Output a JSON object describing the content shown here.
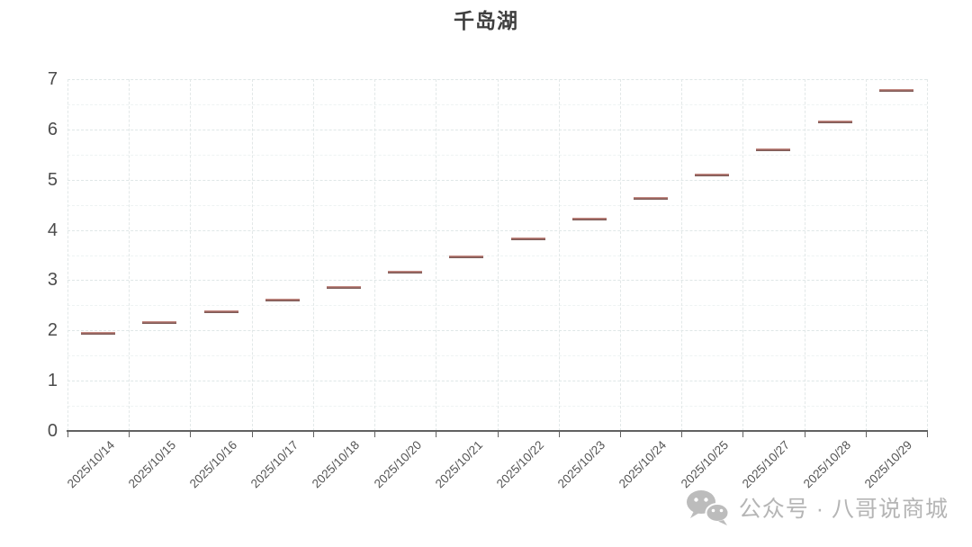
{
  "title": "千岛湖",
  "watermark": {
    "text": "公众号 · 八哥说商城",
    "icon": "wechat-icon",
    "color": "#b5b5b5"
  },
  "colors": {
    "mark": "#9c635e",
    "mark_top_edge": "#d59b94",
    "axis": "#616161",
    "grid_major": "#dfe7e7",
    "grid_minor": "#eef3f3",
    "title_text": "#3f3f3f",
    "tick_label": "#4c4c4c",
    "background": "#ffffff"
  },
  "chart_data": {
    "type": "candlestick",
    "title": "千岛湖",
    "note": "flat horizontal dash marks (open ≈ close), one per trading day",
    "categories": [
      "2025/10/14",
      "2025/10/15",
      "2025/10/16",
      "2025/10/17",
      "2025/10/18",
      "2025/10/20",
      "2025/10/21",
      "2025/10/22",
      "2025/10/23",
      "2025/10/24",
      "2025/10/25",
      "2025/10/27",
      "2025/10/28",
      "2025/10/29"
    ],
    "values": [
      1.95,
      2.15,
      2.37,
      2.61,
      2.86,
      3.16,
      3.47,
      3.82,
      4.21,
      4.62,
      5.09,
      5.6,
      6.15,
      6.77
    ],
    "xlabel": "",
    "ylabel": "",
    "ylim": [
      0,
      7
    ],
    "y_ticks": [
      0,
      1,
      2,
      3,
      4,
      5,
      6,
      7
    ],
    "x_label_rotation_deg": -45,
    "grid": {
      "horizontal_major": 1.0,
      "horizontal_minor": 0.5,
      "vertical": "category boundaries",
      "style": "dashed"
    },
    "legend_position": "none"
  }
}
